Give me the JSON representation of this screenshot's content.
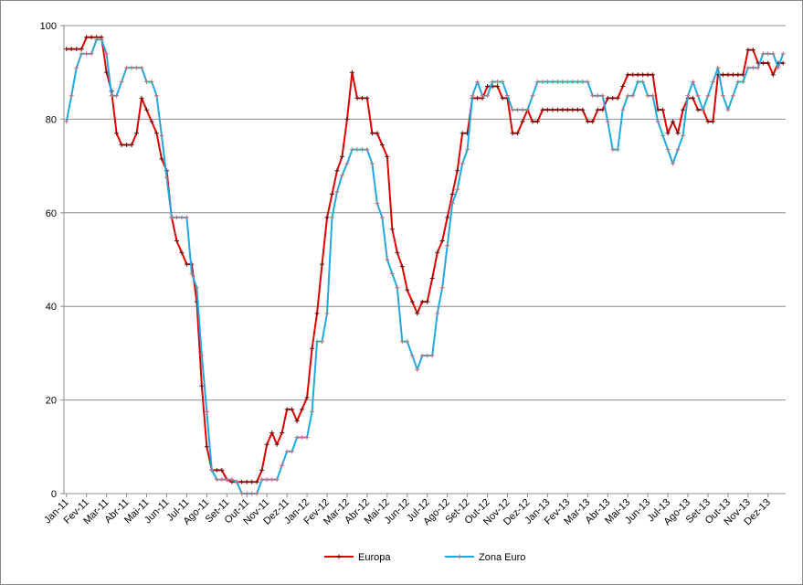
{
  "chart_data": {
    "type": "line",
    "categories": [
      "Jan-11",
      null,
      null,
      null,
      "Fev-11",
      null,
      null,
      null,
      "Mar-11",
      null,
      null,
      null,
      "Abr-11",
      null,
      null,
      null,
      "Mai-11",
      null,
      null,
      null,
      "Jun-11",
      null,
      null,
      null,
      "Jul-11",
      null,
      null,
      null,
      "Ago-11",
      null,
      null,
      null,
      "Set-11",
      null,
      null,
      null,
      "Out-11",
      null,
      null,
      null,
      "Nov-11",
      null,
      null,
      null,
      "Dez-11",
      null,
      null,
      null,
      "Jan-12",
      null,
      null,
      null,
      "Fev-12",
      null,
      null,
      null,
      "Mar-12",
      null,
      null,
      null,
      "Abr-12",
      null,
      null,
      null,
      "Mai-12",
      null,
      null,
      null,
      "Jun-12",
      null,
      null,
      null,
      "Jul-12",
      null,
      null,
      null,
      "Ago-12",
      null,
      null,
      null,
      "Set-12",
      null,
      null,
      null,
      "Out-12",
      null,
      null,
      null,
      "Nov-12",
      null,
      null,
      null,
      "Dez-12",
      null,
      null,
      null,
      "Jan-13",
      null,
      null,
      null,
      "Fev-13",
      null,
      null,
      null,
      "Mar-13",
      null,
      null,
      null,
      "Abr-13",
      null,
      null,
      null,
      "Mai-13",
      null,
      null,
      null,
      "Jun-13",
      null,
      null,
      null,
      "Jul-13",
      null,
      null,
      null,
      "Ago-13",
      null,
      null,
      null,
      "Set-13",
      null,
      null,
      null,
      "Out-13",
      null,
      null,
      null,
      "Nov-13",
      null,
      null,
      null,
      "Dez-13",
      null,
      null,
      null
    ],
    "series": [
      {
        "name": "Europa",
        "color": "#e00000",
        "marker_color": "#5a1010",
        "values": [
          95,
          95,
          95,
          95,
          97.5,
          97.5,
          97.5,
          97.5,
          90,
          86,
          77,
          74.5,
          74.5,
          74.5,
          77,
          84.5,
          82,
          79.5,
          77,
          71.5,
          69,
          59,
          54,
          51.5,
          49,
          49,
          41,
          23,
          10,
          5,
          5,
          5,
          3,
          2.5,
          2.5,
          2.5,
          2.5,
          2.5,
          2.5,
          5,
          10.5,
          13,
          10.5,
          13,
          18,
          18,
          15.5,
          18,
          20.5,
          31,
          38.5,
          49,
          59,
          64,
          69,
          72,
          80,
          90,
          84.5,
          84.5,
          84.5,
          77,
          77,
          74.5,
          72,
          56.5,
          51.5,
          48.5,
          43.5,
          41,
          38.5,
          41,
          41,
          46,
          51.5,
          54,
          59,
          64,
          69,
          77,
          77,
          84.5,
          84.5,
          84.5,
          87,
          87,
          87,
          84.5,
          84.5,
          77,
          77,
          79.5,
          82,
          79.5,
          79.5,
          82,
          82,
          82,
          82,
          82,
          82,
          82,
          82,
          82,
          79.5,
          79.5,
          82,
          82,
          84.5,
          84.5,
          84.5,
          87,
          89.5,
          89.5,
          89.5,
          89.5,
          89.5,
          89.5,
          82,
          82,
          77,
          79.5,
          77,
          82,
          84.5,
          84.5,
          82,
          82,
          79.5,
          79.5,
          89.5,
          89.5,
          89.5,
          89.5,
          89.5,
          89.5,
          94.8,
          94.8,
          92,
          92,
          92,
          89.5,
          92,
          92
        ]
      },
      {
        "name": "Zona Euro",
        "color": "#1ea9e0",
        "marker_color": "#c87070",
        "values": [
          79.5,
          85,
          91,
          94,
          94,
          94,
          97,
          97,
          94,
          85,
          85,
          88,
          91,
          91,
          91,
          91,
          88,
          88,
          85,
          76.5,
          67.5,
          59,
          59,
          59,
          59,
          47,
          44,
          29.5,
          17.5,
          5,
          3,
          3,
          3,
          3,
          2.5,
          0,
          0,
          0,
          0,
          3,
          3,
          3,
          3,
          6,
          9,
          9,
          12,
          12,
          12,
          17.5,
          32.5,
          32.5,
          38.5,
          59,
          64.5,
          68,
          70.5,
          73.5,
          73.5,
          73.5,
          73.5,
          70.5,
          62,
          59,
          50,
          47,
          44,
          32.5,
          32.5,
          29.5,
          26.5,
          29.5,
          29.5,
          29.5,
          38.5,
          44,
          53,
          62,
          65,
          70.5,
          73.5,
          85,
          88,
          85,
          85,
          88,
          88,
          88,
          85,
          82,
          82,
          82,
          82,
          85,
          88,
          88,
          88,
          88,
          88,
          88,
          88,
          88,
          88,
          88,
          88,
          85,
          85,
          85,
          79.5,
          73.5,
          73.5,
          82,
          85,
          85,
          88,
          88,
          85,
          85,
          79.5,
          76.5,
          73.5,
          70.5,
          73.5,
          76.5,
          85,
          88,
          85,
          82,
          85,
          88,
          91,
          85,
          82,
          85,
          88,
          88,
          91,
          91,
          91,
          94,
          94,
          94,
          91,
          94
        ]
      }
    ],
    "ylim": [
      0,
      100
    ],
    "yticks": [
      0,
      20,
      40,
      60,
      80,
      100
    ],
    "grid": true,
    "legend": "bottom"
  }
}
